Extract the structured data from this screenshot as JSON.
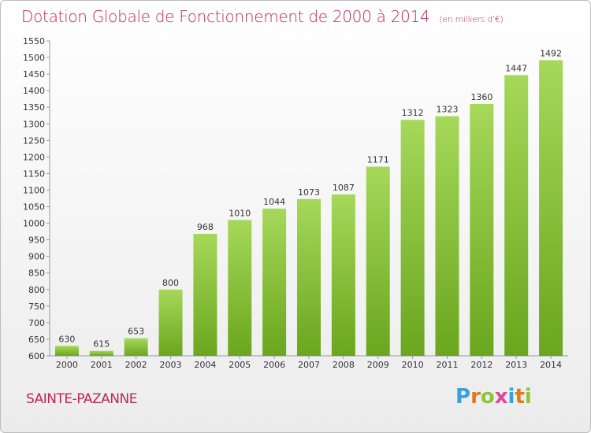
{
  "header": {
    "title": "Dotation Globale de Fonctionnement de 2000 à 2014",
    "subtitle": "(en milliers d'€)"
  },
  "footer": {
    "commune": "SAINTE-PAZANNE",
    "brand": "Proxiti"
  },
  "colors": {
    "title": "#c0245c",
    "bar_light": "#a6d85a",
    "bar_dark": "#6aa61e",
    "brand_letters": [
      "#3aa0d8",
      "#e07a1f",
      "#8bc43f",
      "#e0479a",
      "#3aa0d8",
      "#e07a1f",
      "#8bc43f"
    ]
  },
  "chart_data": {
    "type": "bar",
    "categories": [
      "2000",
      "2001",
      "2002",
      "2003",
      "2004",
      "2005",
      "2006",
      "2007",
      "2008",
      "2009",
      "2010",
      "2011",
      "2012",
      "2013",
      "2014"
    ],
    "values": [
      630,
      615,
      653,
      800,
      968,
      1010,
      1044,
      1073,
      1087,
      1171,
      1312,
      1323,
      1360,
      1447,
      1492
    ],
    "title": "Dotation Globale de Fonctionnement de 2000 à 2014",
    "subtitle": "(en milliers d'€)",
    "xlabel": "",
    "ylabel": "",
    "ylim": [
      600,
      1550
    ],
    "yticks": [
      600,
      650,
      700,
      750,
      800,
      850,
      900,
      950,
      1000,
      1050,
      1100,
      1150,
      1200,
      1250,
      1300,
      1350,
      1400,
      1450,
      1500,
      1550
    ],
    "grid": false,
    "legend": "none"
  }
}
